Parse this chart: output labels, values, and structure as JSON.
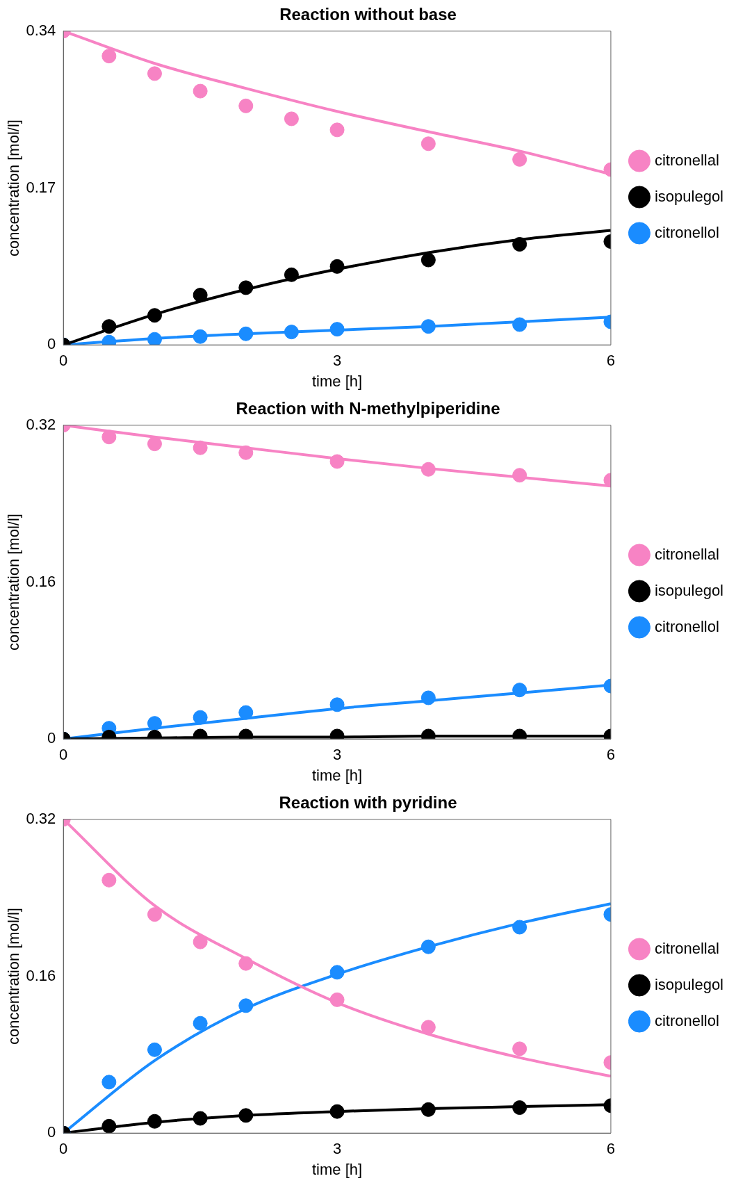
{
  "chart_data": [
    {
      "type": "scatter",
      "title": "Reaction without base",
      "xlabel": "time [h]",
      "ylabel": "concentration [mol/l]",
      "x": [
        0,
        0.5,
        1,
        1.5,
        2,
        2.5,
        3,
        4,
        5,
        6
      ],
      "xlim": [
        0,
        6
      ],
      "xticks": [
        0,
        3,
        6
      ],
      "ylim": [
        0,
        0.34
      ],
      "yticks": [
        0,
        0.17,
        0.34
      ],
      "legend": "right",
      "marker": "circle",
      "grid": false,
      "series": [
        {
          "name": "citronellal",
          "color": "#f783c4",
          "values": [
            0.34,
            0.313,
            0.294,
            0.275,
            0.259,
            0.245,
            0.233,
            0.218,
            0.201,
            0.19
          ]
        },
        {
          "name": "isopulegol",
          "color": "#000000",
          "values": [
            0,
            0.02,
            0.032,
            0.054,
            0.062,
            0.076,
            0.085,
            0.092,
            0.109,
            0.112
          ]
        },
        {
          "name": "citronellol",
          "color": "#1a8cff",
          "values": [
            0,
            0.003,
            0.006,
            0.009,
            0.012,
            0.014,
            0.017,
            0.02,
            0.022,
            0.025
          ]
        },
        {
          "type": "line",
          "marker": "none",
          "color": "#f783c4",
          "x": [
            0,
            1,
            2,
            3,
            4,
            5,
            6
          ],
          "values": [
            0.34,
            0.305,
            0.278,
            0.253,
            0.231,
            0.21,
            0.185
          ]
        },
        {
          "type": "line",
          "marker": "none",
          "color": "#000000",
          "x": [
            0,
            1,
            2,
            3,
            4,
            5,
            6
          ],
          "values": [
            0,
            0.033,
            0.06,
            0.082,
            0.1,
            0.114,
            0.124
          ]
        },
        {
          "type": "line",
          "marker": "none",
          "color": "#1a8cff",
          "x": [
            0,
            1,
            2,
            3,
            4,
            5,
            6
          ],
          "values": [
            0,
            0.007,
            0.012,
            0.016,
            0.02,
            0.025,
            0.03
          ]
        }
      ]
    },
    {
      "type": "scatter",
      "title": "Reaction with N-methylpiperidine",
      "xlabel": "time [h]",
      "ylabel": "concentration [mol/l]",
      "x": [
        0,
        0.5,
        1,
        1.5,
        2,
        3,
        4,
        5,
        6
      ],
      "xlim": [
        0,
        6
      ],
      "xticks": [
        0,
        3,
        6
      ],
      "ylim": [
        0,
        0.32
      ],
      "yticks": [
        0,
        0.16,
        0.32
      ],
      "legend": "right",
      "marker": "circle",
      "grid": false,
      "series": [
        {
          "name": "citronellal",
          "color": "#f783c4",
          "values": [
            0.32,
            0.308,
            0.301,
            0.297,
            0.292,
            0.283,
            0.275,
            0.269,
            0.264
          ]
        },
        {
          "name": "isopulegol",
          "color": "#000000",
          "values": [
            0,
            0.002,
            0.002,
            0.003,
            0.003,
            0.003,
            0.003,
            0.003,
            0.003
          ]
        },
        {
          "name": "citronellol",
          "color": "#1a8cff",
          "values": [
            0,
            0.011,
            0.016,
            0.022,
            0.027,
            0.035,
            0.042,
            0.05,
            0.054
          ]
        },
        {
          "type": "line",
          "marker": "none",
          "color": "#f783c4",
          "x": [
            0,
            1,
            2,
            3,
            4,
            5,
            6
          ],
          "values": [
            0.32,
            0.308,
            0.297,
            0.286,
            0.276,
            0.267,
            0.258
          ]
        },
        {
          "type": "line",
          "marker": "none",
          "color": "#000000",
          "x": [
            0,
            1,
            2,
            3,
            4,
            5,
            6
          ],
          "values": [
            0,
            0.001,
            0.002,
            0.002,
            0.003,
            0.003,
            0.003
          ]
        },
        {
          "type": "line",
          "marker": "none",
          "color": "#1a8cff",
          "x": [
            0,
            1,
            2,
            3,
            4,
            5,
            6
          ],
          "values": [
            0,
            0.011,
            0.021,
            0.031,
            0.039,
            0.047,
            0.055
          ]
        }
      ]
    },
    {
      "type": "scatter",
      "title": "Reaction with pyridine",
      "xlabel": "time [h]",
      "ylabel": "concentration [mol/l]",
      "x": [
        0,
        0.5,
        1,
        1.5,
        2,
        3,
        4,
        5,
        6
      ],
      "xlim": [
        0,
        6
      ],
      "xticks": [
        0,
        3,
        6
      ],
      "ylim": [
        0,
        0.32
      ],
      "yticks": [
        0,
        0.16,
        0.32
      ],
      "legend": "right",
      "marker": "circle",
      "grid": false,
      "series": [
        {
          "name": "citronellal",
          "color": "#f783c4",
          "values": [
            0.32,
            0.258,
            0.223,
            0.195,
            0.173,
            0.136,
            0.108,
            0.086,
            0.072
          ]
        },
        {
          "name": "isopulegol",
          "color": "#000000",
          "values": [
            0,
            0.007,
            0.012,
            0.015,
            0.018,
            0.022,
            0.024,
            0.026,
            0.028
          ]
        },
        {
          "name": "citronellol",
          "color": "#1a8cff",
          "values": [
            0,
            0.052,
            0.085,
            0.112,
            0.13,
            0.164,
            0.19,
            0.21,
            0.223
          ]
        },
        {
          "type": "line",
          "marker": "none",
          "color": "#f783c4",
          "x": [
            0,
            1,
            2,
            3,
            4,
            5,
            6
          ],
          "values": [
            0.32,
            0.232,
            0.178,
            0.133,
            0.101,
            0.077,
            0.058
          ]
        },
        {
          "type": "line",
          "marker": "none",
          "color": "#000000",
          "x": [
            0,
            1,
            2,
            3,
            4,
            5,
            6
          ],
          "values": [
            0,
            0.011,
            0.018,
            0.022,
            0.025,
            0.027,
            0.029
          ]
        },
        {
          "type": "line",
          "marker": "none",
          "color": "#1a8cff",
          "x": [
            0,
            1,
            2,
            3,
            4,
            5,
            6
          ],
          "values": [
            0,
            0.074,
            0.127,
            0.162,
            0.19,
            0.214,
            0.234
          ]
        }
      ]
    }
  ]
}
